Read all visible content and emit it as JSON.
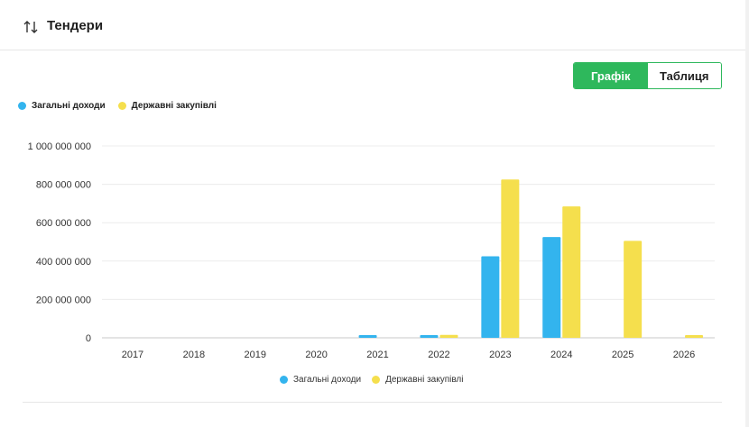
{
  "header": {
    "title": "Тендери",
    "icon": "sort-arrows-icon"
  },
  "toggle": {
    "chart_label": "Графік",
    "table_label": "Таблиця",
    "active": "chart"
  },
  "colors": {
    "income": "#33b4ee",
    "procurement": "#f5df4d",
    "accent": "#2eb85c"
  },
  "legend": {
    "income_label": "Загальні доходи",
    "procurement_label": "Державні закупівлі"
  },
  "chart_data": {
    "type": "bar",
    "categories": [
      "2017",
      "2018",
      "2019",
      "2020",
      "2021",
      "2022",
      "2023",
      "2024",
      "2025",
      "2026"
    ],
    "series": [
      {
        "name": "Загальні доходи",
        "values": [
          0,
          0,
          0,
          0,
          14000000,
          14000000,
          425000000,
          525000000,
          0,
          0
        ]
      },
      {
        "name": "Державні закупівлі",
        "values": [
          0,
          0,
          0,
          0,
          0,
          15000000,
          825000000,
          685000000,
          505000000,
          14000000
        ]
      }
    ],
    "yticks": [
      "0",
      "200 000 000",
      "400 000 000",
      "600 000 000",
      "800 000 000",
      "1 000 000 000"
    ],
    "ylim": [
      0,
      1000000000
    ],
    "grid": true,
    "legend_position": "top-left and bottom-center"
  }
}
